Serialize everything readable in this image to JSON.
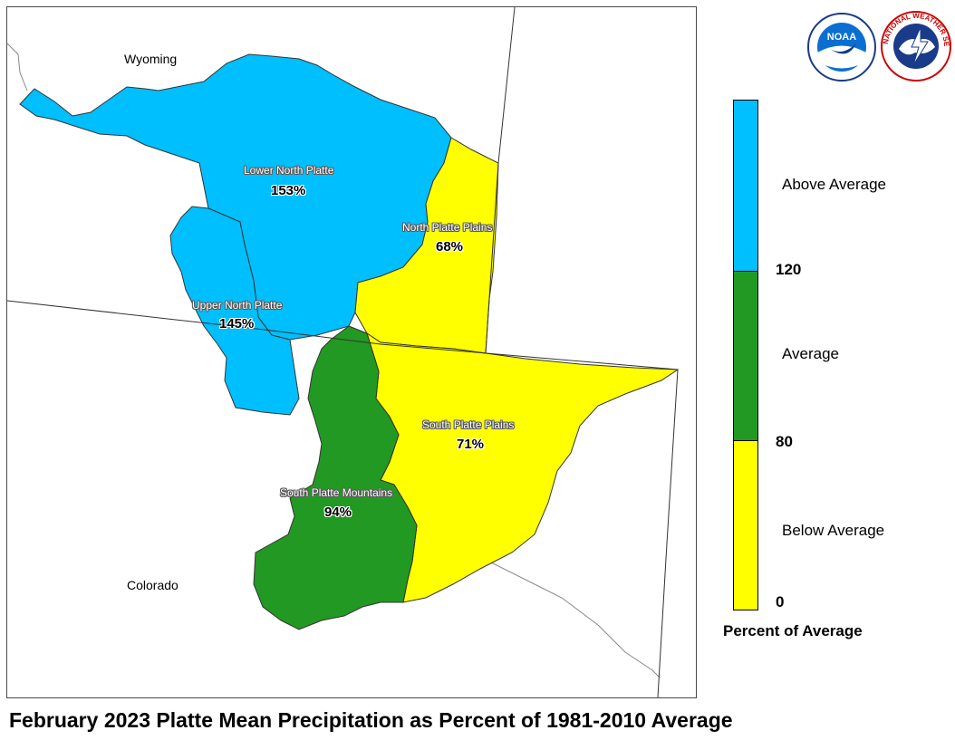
{
  "title": "February 2023 Platte Mean Precipitation as Percent of 1981-2010 Average",
  "states": [
    {
      "name": "Wyoming"
    },
    {
      "name": "Colorado"
    }
  ],
  "regions": [
    {
      "name": "Lower North Platte",
      "value": "153%",
      "category": "Above Average",
      "color": "#00bfff"
    },
    {
      "name": "North Platte Plains",
      "value": "68%",
      "category": "Below Average",
      "color": "#ffff00"
    },
    {
      "name": "Upper North Platte",
      "value": "145%",
      "category": "Above Average",
      "color": "#00bfff"
    },
    {
      "name": "South Platte Plains",
      "value": "71%",
      "category": "Below Average",
      "color": "#ffff00"
    },
    {
      "name": "South Platte Mountains",
      "value": "94%",
      "category": "Average",
      "color": "#229922"
    }
  ],
  "legend": {
    "title": "Percent of Average",
    "bins": [
      {
        "label": "Above Average",
        "color": "#00bfff"
      },
      {
        "label": "Average",
        "color": "#229922"
      },
      {
        "label": "Below Average",
        "color": "#ffff00"
      }
    ],
    "ticks": [
      "120",
      "80",
      "0"
    ]
  },
  "logos": {
    "noaa": {
      "text": "NOAA",
      "icon": "noaa-logo"
    },
    "nws": {
      "text": "NATIONAL WEATHER SERVICE",
      "icon": "nws-logo"
    }
  },
  "colors": {
    "above": "#00bfff",
    "average": "#229922",
    "below": "#ffff00",
    "boundary": "#333333"
  }
}
